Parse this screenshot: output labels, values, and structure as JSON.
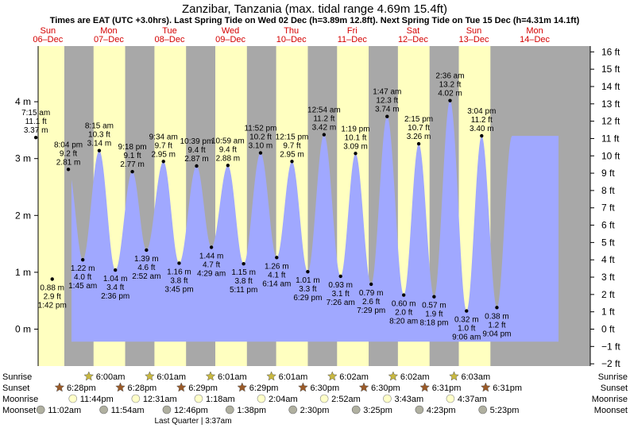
{
  "chart_data": {
    "type": "area",
    "title": "Zanzibar, Tanzania (max. tidal range 4.69m 15.4ft)",
    "subtitle": "Times are EAT (UTC +3.0hrs). Last Spring Tide on Wed 02 Dec (h=3.89m 12.8ft). Next Spring Tide on Tue 15 Dec (h=4.31m 14.1ft)",
    "ylim": [
      -0.6,
      4.9
    ],
    "y_ticks_m": [
      "4 m",
      "3 m",
      "2 m",
      "1 m",
      "0 m"
    ],
    "y_ticks_ft": [
      "16 ft",
      "15 ft",
      "14 ft",
      "13 ft",
      "12 ft",
      "11 ft",
      "10 ft",
      "9 ft",
      "8 ft",
      "7 ft",
      "6 ft",
      "5 ft",
      "4 ft",
      "3 ft",
      "2 ft",
      "1 ft",
      "0 ft",
      "−1 ft",
      "−2 ft"
    ],
    "days": [
      {
        "name": "Sun",
        "date": "06–Dec"
      },
      {
        "name": "Mon",
        "date": "07–Dec"
      },
      {
        "name": "Tue",
        "date": "08–Dec"
      },
      {
        "name": "Wed",
        "date": "09–Dec"
      },
      {
        "name": "Thu",
        "date": "10–Dec"
      },
      {
        "name": "Fri",
        "date": "11–Dec"
      },
      {
        "name": "Sat",
        "date": "12–Dec"
      },
      {
        "name": "Sun",
        "date": "13–Dec"
      },
      {
        "name": "Mon",
        "date": "14–Dec"
      }
    ],
    "tides": [
      {
        "time": "7:15 am",
        "ft": "11.1 ft",
        "m": "3.37 m",
        "h": 3.37,
        "day": 0,
        "hr": 7.25,
        "type": "high"
      },
      {
        "time": "1:42 pm",
        "ft": "2.9 ft",
        "m": "0.88 m",
        "h": 0.88,
        "day": 0,
        "hr": 13.7,
        "type": "low"
      },
      {
        "time": "8:04 pm",
        "ft": "9.2 ft",
        "m": "2.81 m",
        "h": 2.81,
        "day": 0,
        "hr": 20.067,
        "type": "high"
      },
      {
        "time": "1:45 am",
        "ft": "4.0 ft",
        "m": "1.22 m",
        "h": 1.22,
        "day": 1,
        "hr": 1.75,
        "type": "low"
      },
      {
        "time": "8:15 am",
        "ft": "10.3 ft",
        "m": "3.14 m",
        "h": 3.14,
        "day": 1,
        "hr": 8.25,
        "type": "high"
      },
      {
        "time": "2:36 pm",
        "ft": "3.4 ft",
        "m": "1.04 m",
        "h": 1.04,
        "day": 1,
        "hr": 14.6,
        "type": "low"
      },
      {
        "time": "9:18 pm",
        "ft": "9.1 ft",
        "m": "2.77 m",
        "h": 2.77,
        "day": 1,
        "hr": 21.3,
        "type": "high"
      },
      {
        "time": "2:52 am",
        "ft": "4.6 ft",
        "m": "1.39 m",
        "h": 1.39,
        "day": 2,
        "hr": 2.867,
        "type": "low"
      },
      {
        "time": "9:34 am",
        "ft": "9.7 ft",
        "m": "2.95 m",
        "h": 2.95,
        "day": 2,
        "hr": 9.567,
        "type": "high"
      },
      {
        "time": "3:45 pm",
        "ft": "3.8 ft",
        "m": "1.16 m",
        "h": 1.16,
        "day": 2,
        "hr": 15.75,
        "type": "low"
      },
      {
        "time": "10:39 pm",
        "ft": "9.4 ft",
        "m": "2.87 m",
        "h": 2.87,
        "day": 2,
        "hr": 22.65,
        "type": "high"
      },
      {
        "time": "4:29 am",
        "ft": "4.7 ft",
        "m": "1.44 m",
        "h": 1.44,
        "day": 3,
        "hr": 4.483,
        "type": "low"
      },
      {
        "time": "10:59 am",
        "ft": "9.4 ft",
        "m": "2.88 m",
        "h": 2.88,
        "day": 3,
        "hr": 10.983,
        "type": "high"
      },
      {
        "time": "5:11 pm",
        "ft": "3.8 ft",
        "m": "1.15 m",
        "h": 1.15,
        "day": 3,
        "hr": 17.183,
        "type": "low"
      },
      {
        "time": "11:52 pm",
        "ft": "10.2 ft",
        "m": "3.10 m",
        "h": 3.1,
        "day": 3,
        "hr": 23.867,
        "type": "high"
      },
      {
        "time": "6:14 am",
        "ft": "4.1 ft",
        "m": "1.26 m",
        "h": 1.26,
        "day": 4,
        "hr": 6.233,
        "type": "low"
      },
      {
        "time": "12:15 pm",
        "ft": "9.7 ft",
        "m": "2.95 m",
        "h": 2.95,
        "day": 4,
        "hr": 12.25,
        "type": "high"
      },
      {
        "time": "6:29 pm",
        "ft": "3.3 ft",
        "m": "1.01 m",
        "h": 1.01,
        "day": 4,
        "hr": 18.483,
        "type": "low"
      },
      {
        "time": "12:54 am",
        "ft": "11.2 ft",
        "m": "3.42 m",
        "h": 3.42,
        "day": 5,
        "hr": 0.9,
        "type": "high"
      },
      {
        "time": "7:26 am",
        "ft": "3.1 ft",
        "m": "0.93 m",
        "h": 0.93,
        "day": 5,
        "hr": 7.433,
        "type": "low"
      },
      {
        "time": "1:19 pm",
        "ft": "10.1 ft",
        "m": "3.09 m",
        "h": 3.09,
        "day": 5,
        "hr": 13.317,
        "type": "high"
      },
      {
        "time": "7:29 pm",
        "ft": "2.6 ft",
        "m": "0.79 m",
        "h": 0.79,
        "day": 5,
        "hr": 19.483,
        "type": "low"
      },
      {
        "time": "1:47 am",
        "ft": "12.3 ft",
        "m": "3.74 m",
        "h": 3.74,
        "day": 6,
        "hr": 1.783,
        "type": "high"
      },
      {
        "time": "8:20 am",
        "ft": "2.0 ft",
        "m": "0.60 m",
        "h": 0.6,
        "day": 6,
        "hr": 8.333,
        "type": "low"
      },
      {
        "time": "2:15 pm",
        "ft": "10.7 ft",
        "m": "3.26 m",
        "h": 3.26,
        "day": 6,
        "hr": 14.25,
        "type": "high"
      },
      {
        "time": "8:18 pm",
        "ft": "1.9 ft",
        "m": "0.57 m",
        "h": 0.57,
        "day": 6,
        "hr": 20.3,
        "type": "low"
      },
      {
        "time": "2:36 am",
        "ft": "13.2 ft",
        "m": "4.02 m",
        "h": 4.02,
        "day": 7,
        "hr": 2.6,
        "type": "high"
      },
      {
        "time": "9:06 am",
        "ft": "1.0 ft",
        "m": "0.32 m",
        "h": 0.32,
        "day": 7,
        "hr": 9.1,
        "type": "low"
      },
      {
        "time": "3:04 pm",
        "ft": "11.2 ft",
        "m": "3.40 m",
        "h": 3.4,
        "day": 7,
        "hr": 15.067,
        "type": "high"
      },
      {
        "time": "9:04 pm",
        "ft": "1.2 ft",
        "m": "0.38 m",
        "h": 0.38,
        "day": 7,
        "hr": 21.067,
        "type": "low"
      }
    ],
    "sun": {
      "sunrise": [
        "6:00am",
        "6:01am",
        "6:01am",
        "6:01am",
        "6:02am",
        "6:02am",
        "6:03am"
      ],
      "sunset": [
        "6:28pm",
        "6:28pm",
        "6:29pm",
        "6:29pm",
        "6:30pm",
        "6:30pm",
        "6:31pm",
        "6:31pm"
      ],
      "moonrise": [
        "11:44pm",
        "12:31am",
        "1:18am",
        "2:04am",
        "2:52am",
        "3:43am",
        "4:37am"
      ],
      "moonset": [
        "11:02am",
        "11:54am",
        "12:46pm",
        "1:38pm",
        "2:30pm",
        "3:25pm",
        "4:23pm",
        "5:23pm"
      ]
    },
    "row_labels": [
      "Sunrise",
      "Sunset",
      "Moonrise",
      "Moonset"
    ],
    "moon_phase": "Last Quarter | 3:37am",
    "colors": {
      "day": "#ffffc0",
      "night": "#a8a8a8",
      "tide": "#a0a8ff",
      "day_label": "#d40000",
      "sun_icon": "#c8b840",
      "sunset_icon": "#9a5a28",
      "moon_icon": "#ffffc8",
      "moonset_icon": "#b0b0a0"
    }
  }
}
